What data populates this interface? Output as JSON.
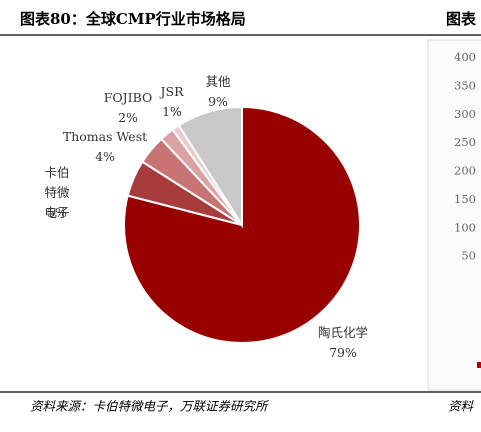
{
  "chart_data": [
    {
      "type": "pie",
      "title": "图表80：全球CMP行业市场格局",
      "categories": [
        "陶氏化学",
        "卡伯特微电子",
        "Thomas West",
        "FOJIBO",
        "JSR",
        "其他"
      ],
      "values": [
        79,
        5,
        4,
        2,
        1,
        9
      ],
      "value_labels": [
        "79%",
        "5%",
        "4%",
        "2%",
        "1%",
        "9%"
      ],
      "colors": [
        "#990000",
        "#a83c3c",
        "#c97474",
        "#dba2a2",
        "#ebcaca",
        "#c8c8c8"
      ],
      "source": "资料来源：卡伯特微电子，万联证券研究所"
    },
    {
      "type": "bar",
      "title": "图表",
      "ylim": [
        0,
        400
      ],
      "yticks": [
        400,
        350,
        300,
        250,
        200,
        150,
        100,
        50
      ],
      "source": "资料"
    }
  ]
}
